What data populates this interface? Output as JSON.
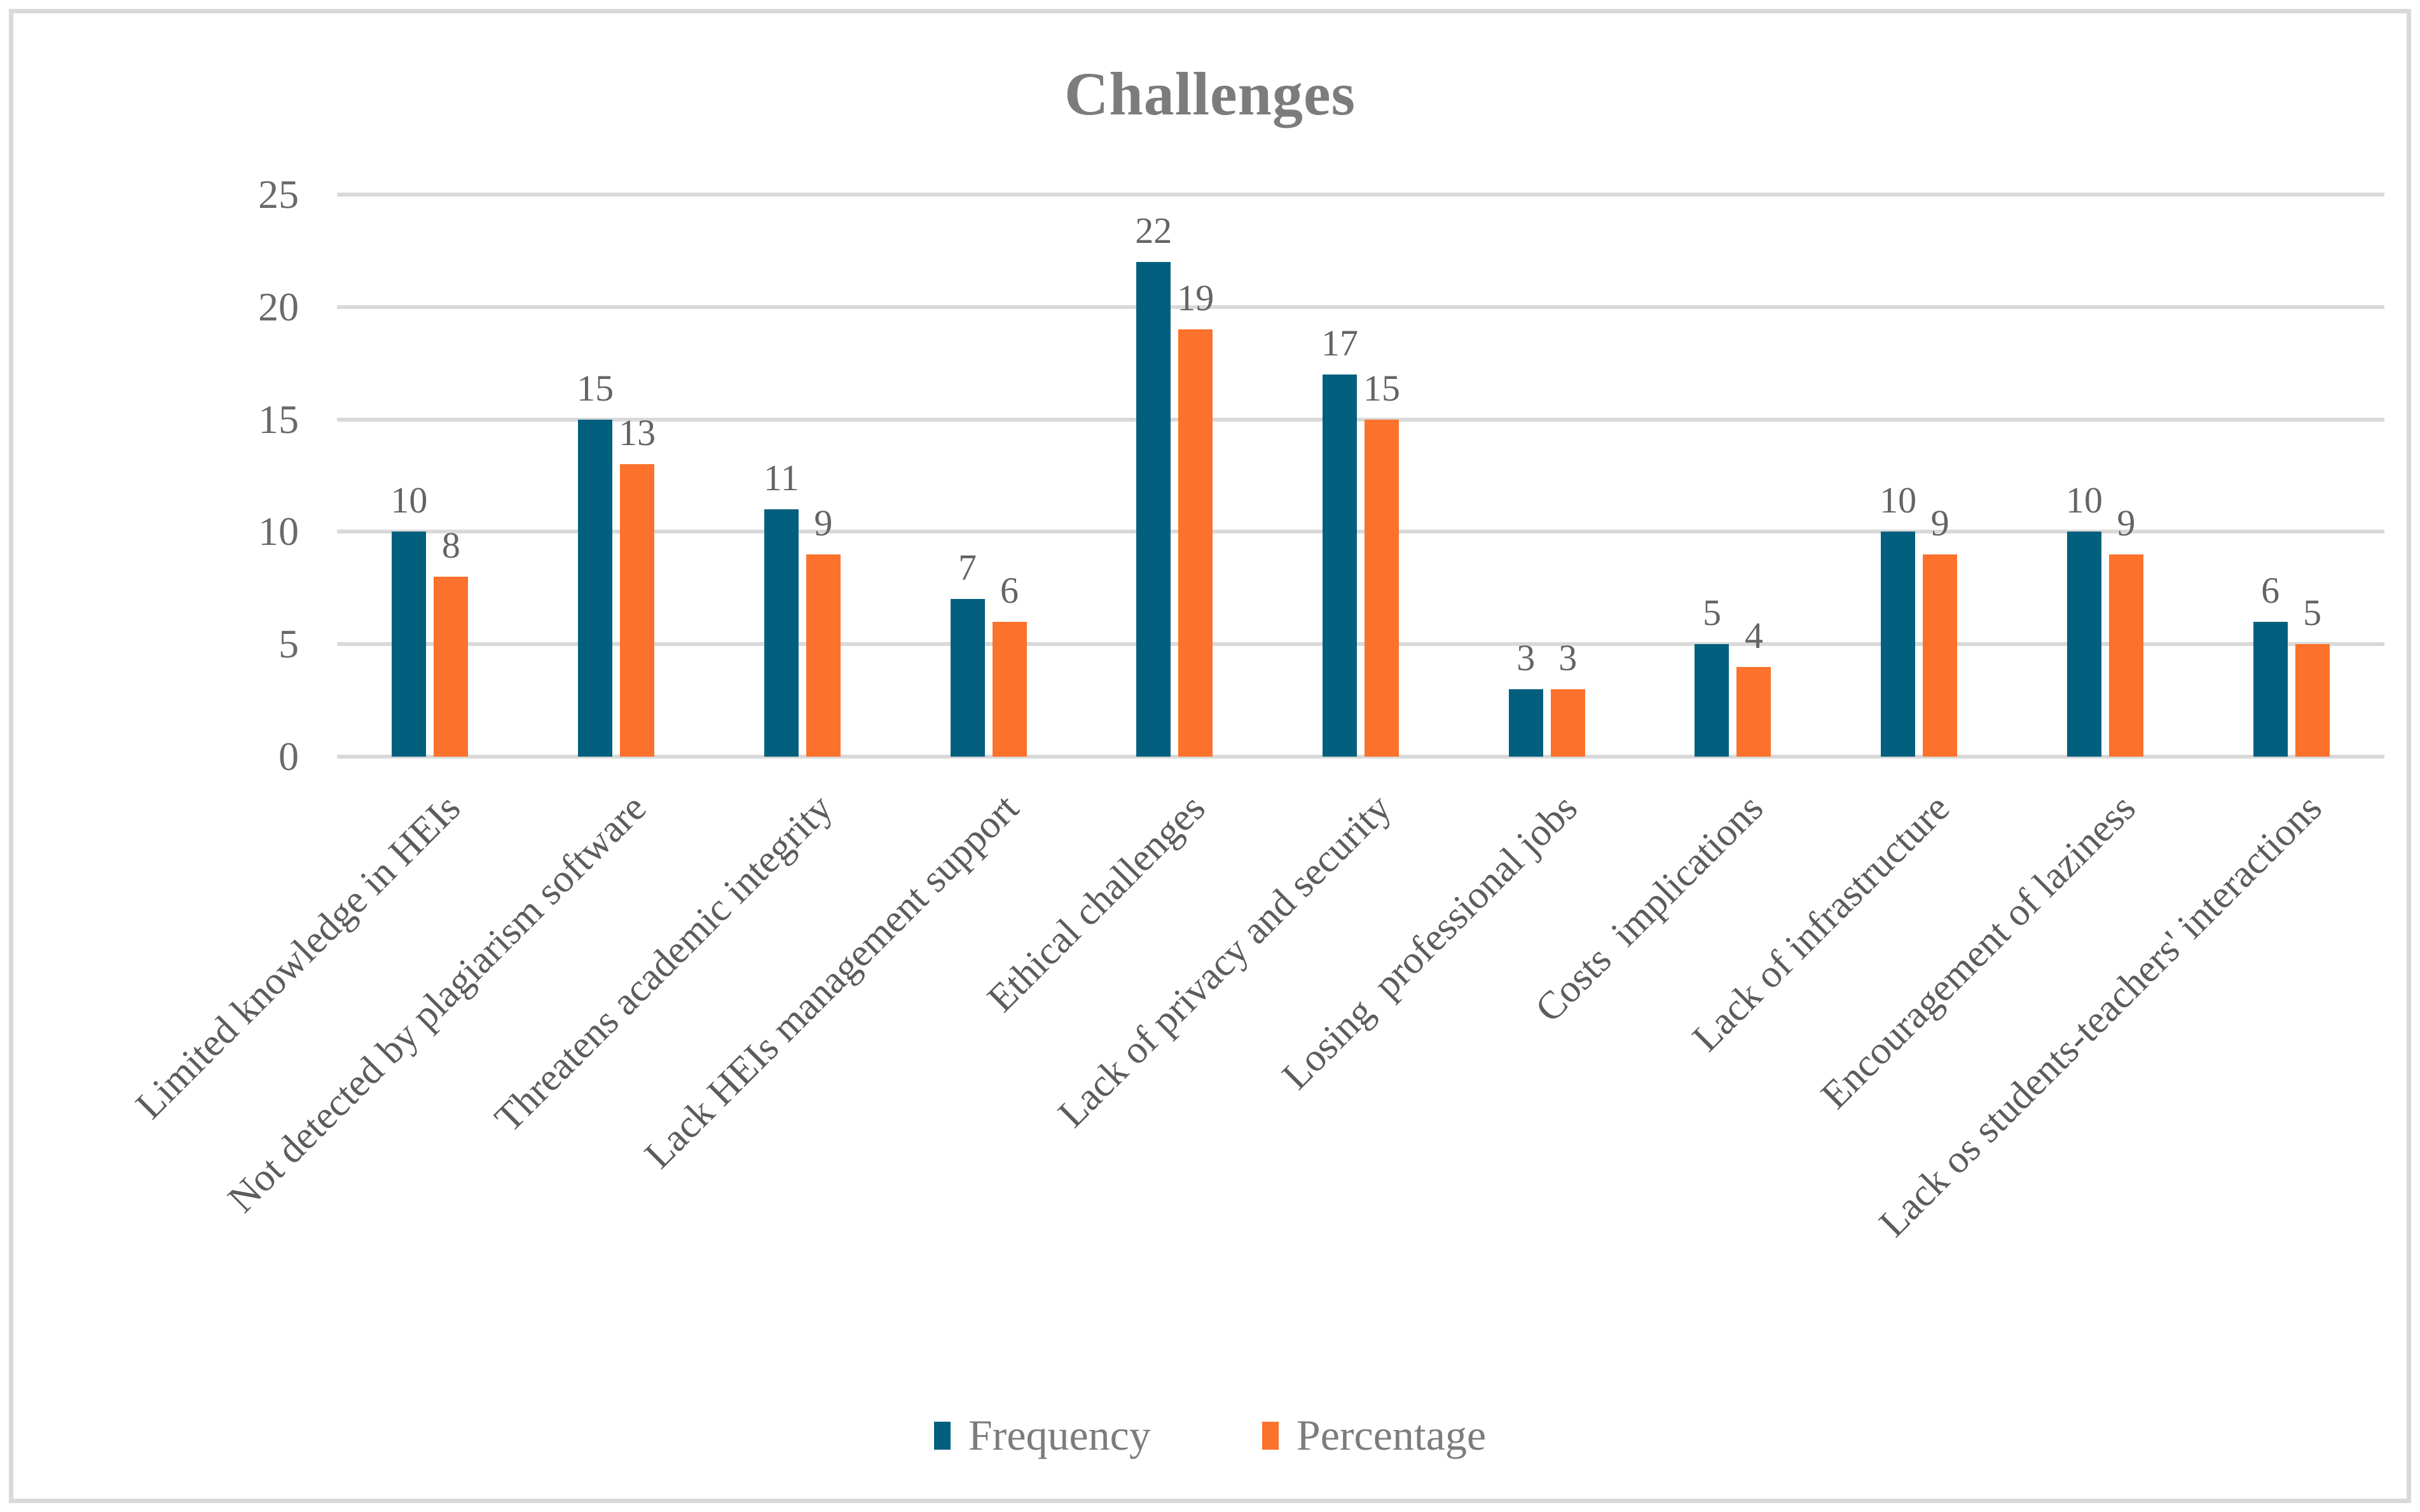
{
  "title": "Challenges",
  "colors": {
    "frequency_bar": "#02607E",
    "percentage_bar": "#FC712B",
    "gridline": "#D9D9D9",
    "frame_border": "#D9D9D9",
    "title_text": "#7C7C7C",
    "label_text": "#5C5C5C"
  },
  "chart_data": {
    "type": "bar",
    "title": "Challenges",
    "categories": [
      "Limited knowledge in HEIs",
      "Not detected by plagiarism software",
      "Threatens academic integrity",
      "Lack HEIs management support",
      "Ethical challenges",
      "Lack of privacy and security",
      "Losing  professional jobs",
      "Costs  implications",
      "Lack of infrastructure",
      "Encouragement of laziness",
      "Lack os students-teachers' interactions"
    ],
    "series": [
      {
        "name": "Frequency",
        "values": [
          10,
          15,
          11,
          7,
          22,
          17,
          3,
          5,
          10,
          10,
          6
        ]
      },
      {
        "name": "Percentage",
        "values": [
          8,
          13,
          9,
          6,
          19,
          15,
          3,
          4,
          9,
          9,
          5
        ]
      }
    ],
    "xlabel": "",
    "ylabel": "",
    "ylim": [
      0,
      25
    ],
    "yticks": [
      0,
      5,
      10,
      15,
      20,
      25
    ],
    "grid": "horizontal",
    "legend_position": "bottom",
    "bar_labels": "outside-end",
    "category_label_rotation_deg": 45
  }
}
